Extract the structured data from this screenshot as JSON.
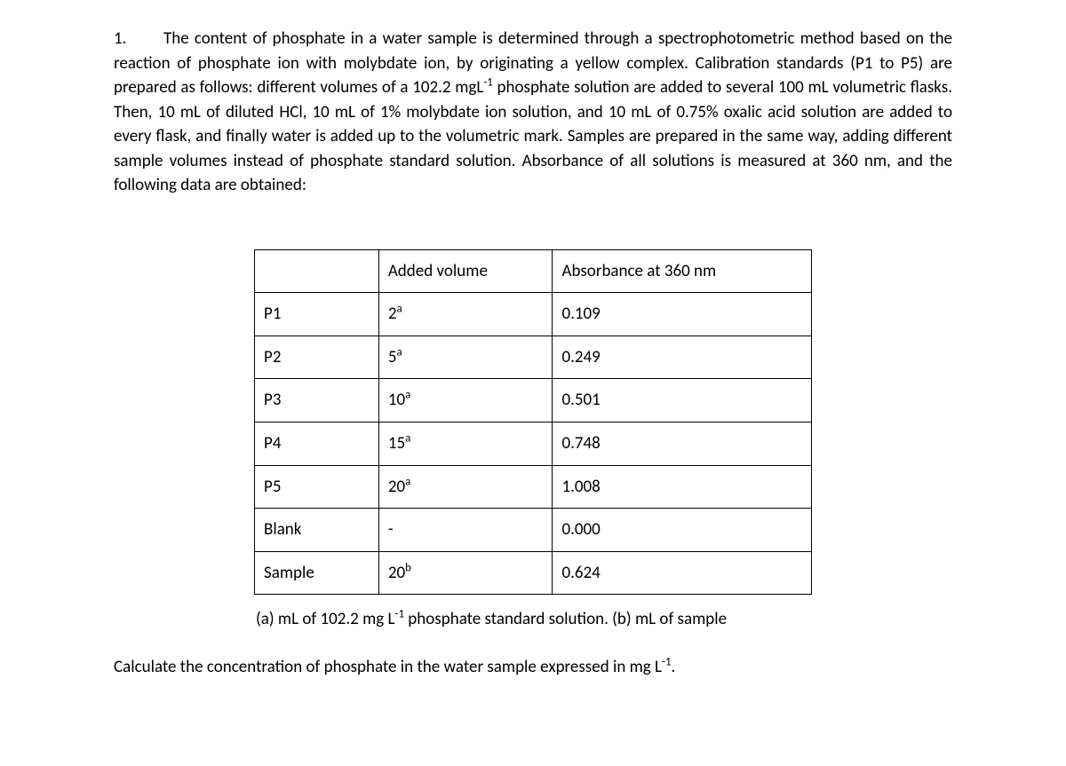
{
  "problem": {
    "number": "1.",
    "text_html": "The content of phosphate in a water sample is determined through a spectrophotometric method based on the reaction of phosphate ion with molybdate ion, by originating a yellow complex. Calibration standards (P1 to P5) are prepared as follows: different volumes of a 102.2 mgL<sup>-1</sup> phosphate solution are added to several 100 mL volumetric flasks. Then, 10 mL of diluted HCl, 10 mL of 1% molybdate ion solution, and 10 mL of 0.75% oxalic acid solution  are added to every flask, and finally water is added up to the volumetric mark. Samples are prepared in the same way, adding different sample volumes instead of phosphate standard solution. Absorbance of all solutions is measured at 360 nm, and the following data are obtained:"
  },
  "table": {
    "headers": [
      "",
      "Added volume",
      "Absorbance at 360 nm"
    ],
    "rows": [
      {
        "label": "P1",
        "volume_html": "2<sup>a</sup>",
        "absorbance": "0.109"
      },
      {
        "label": "P2",
        "volume_html": "5<sup>a</sup>",
        "absorbance": "0.249"
      },
      {
        "label": "P3",
        "volume_html": "10<sup>a</sup>",
        "absorbance": "0.501"
      },
      {
        "label": "P4",
        "volume_html": "15<sup>a</sup>",
        "absorbance": "0.748"
      },
      {
        "label": "P5",
        "volume_html": "20<sup>a</sup>",
        "absorbance": "1.008"
      },
      {
        "label": "Blank",
        "volume_html": "-",
        "absorbance": "0.000"
      },
      {
        "label": "Sample",
        "volume_html": "20<sup>b</sup>",
        "absorbance": "0.624"
      }
    ]
  },
  "footnote_html": "(a) mL of 102.2 mg L<sup>-1</sup> phosphate standard solution. (b) mL of sample",
  "question_html": "Calculate the concentration of phosphate in the water sample expressed in mg L<sup>-1</sup>."
}
